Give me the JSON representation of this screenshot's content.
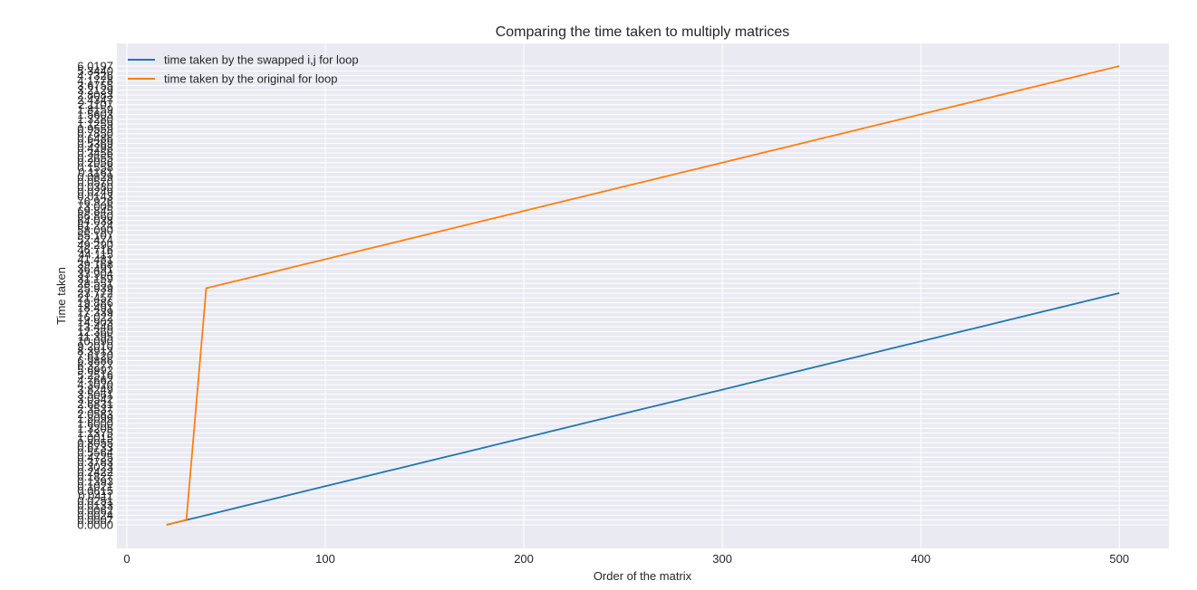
{
  "chart_data": {
    "type": "line",
    "title": "Comparing the time taken to multiply matrices",
    "xlabel": "Order of the matrix",
    "ylabel": "Time taken",
    "xlim": [
      -5,
      525
    ],
    "xticks": [
      0,
      100,
      200,
      300,
      400,
      500
    ],
    "y_axis_note": "categorical axis: each plotted time value is its own tick, in increasing order of first appearance",
    "grid": true,
    "legend_position": "upper left",
    "series": [
      {
        "name": "time taken by the swapped i,j for loop",
        "color": "#1f77b4",
        "x": [
          20,
          30,
          40,
          50,
          60,
          70,
          80,
          90,
          100,
          110,
          120,
          130,
          140,
          150,
          160,
          170,
          180,
          190,
          200,
          210,
          220,
          230,
          240,
          250,
          260,
          270,
          280,
          290,
          300,
          310,
          320,
          330,
          340,
          350,
          360,
          370,
          380,
          390,
          400,
          410,
          420,
          430,
          440,
          450,
          460,
          470,
          480,
          490,
          500
        ],
        "y": [
          "0.0000",
          "0.0007",
          "0.0024",
          "0.0062",
          "0.0133",
          "0.0251",
          "0.0411",
          "0.0615",
          "0.1021",
          "0.1393",
          "0.1827",
          "0.2422",
          "0.3023",
          "0.3783",
          "0.4725",
          "0.5564",
          "0.6733",
          "0.8055",
          "1.0015",
          "1.1375",
          "1.3205",
          "1.6000",
          "1.8099",
          "2.0583",
          "2.3537",
          "2.6831",
          "3.0542",
          "3.5061",
          "3.8249",
          "4.3020",
          "4.7662",
          "5.2516",
          "5.6992",
          "6.3277",
          "6.9886",
          "7.6120",
          "8.3913",
          "9.2010",
          "10.090",
          "11.395",
          "12.360",
          "13.446",
          "14.903",
          "16.022",
          "17.339",
          "18.491",
          "19.886",
          "21.457",
          "23.772"
        ]
      },
      {
        "name": "time taken by the original for loop",
        "color": "#ff7f0e",
        "x": [
          20,
          30,
          40,
          50,
          60,
          70,
          80,
          90,
          100,
          110,
          120,
          130,
          140,
          150,
          160,
          170,
          180,
          190,
          200,
          210,
          220,
          230,
          240,
          250,
          260,
          270,
          280,
          290,
          300,
          310,
          320,
          330,
          340,
          350,
          360,
          370,
          380,
          390,
          400,
          410,
          420,
          430,
          440,
          450,
          460,
          470,
          480,
          490,
          500
        ],
        "y": [
          "0.0000",
          "0.0007",
          "25.939",
          "28.551",
          "31.159",
          "33.904",
          "36.491",
          "39.168",
          "41.481",
          "44.115",
          "46.716",
          "49.290",
          "52.474",
          "55.107",
          "58.090",
          "61.224",
          "64.038",
          "66.860",
          "69.845",
          "73.005",
          "76.926",
          "0.0143",
          "0.0249",
          "0.0380",
          "0.0570",
          "0.0829",
          "0.1161",
          "0.1558",
          "0.2056",
          "0.2655",
          "0.3456",
          "0.4298",
          "0.5369",
          "0.6486",
          "0.7850",
          "0.9559",
          "1.1259",
          "1.3280",
          "1.5603",
          "1.8159",
          "2.1107",
          "2.4347",
          "2.8083",
          "3.2129",
          "3.6755",
          "4.1778",
          "4.7326",
          "5.3440",
          "6.0197"
        ]
      }
    ]
  }
}
